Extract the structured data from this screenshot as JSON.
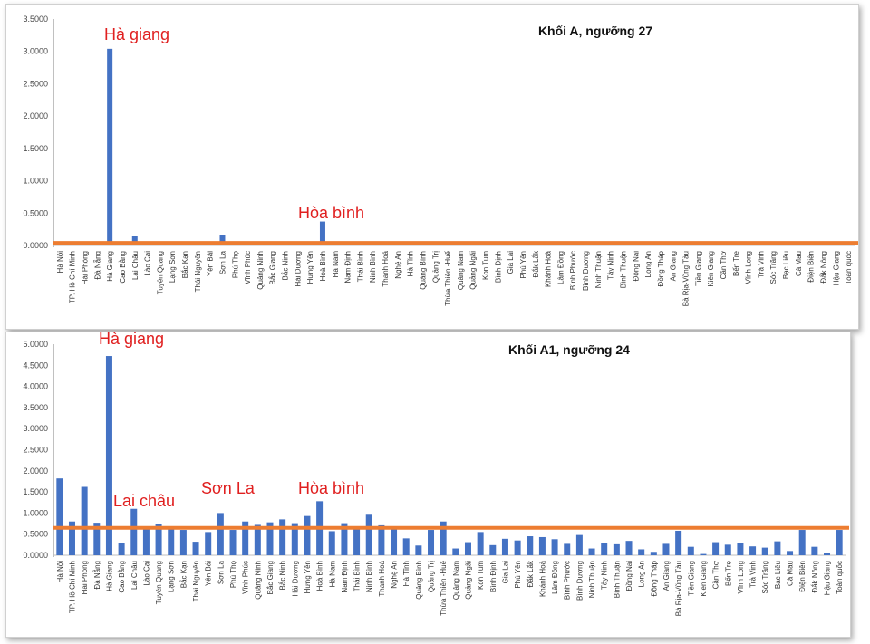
{
  "colors": {
    "bar": "#4472c4",
    "threshold": "#ed7d31",
    "annotation": "#e02020",
    "grid": "#d9d9d9"
  },
  "chart_data": [
    {
      "type": "bar",
      "title": "Khối A, ngưỡng 27",
      "ylim": [
        0,
        3.5
      ],
      "yticks": [
        "0.0000",
        "0.5000",
        "1.0000",
        "1.5000",
        "2.0000",
        "2.5000",
        "3.0000",
        "3.5000"
      ],
      "threshold": 0.04,
      "grid": false,
      "annotations": [
        {
          "text": "Hà giang",
          "category": "Hà Giang"
        },
        {
          "text": "Hòa bình",
          "category": "Hoà Bình"
        }
      ],
      "categories": [
        "Hà Nội",
        "TP. Hồ Chí Minh",
        "Hải Phòng",
        "Đà Nẵng",
        "Hà Giang",
        "Cao Bằng",
        "Lai Châu",
        "Lào Cai",
        "Tuyên Quang",
        "Lạng Sơn",
        "Bắc Kạn",
        "Thái Nguyên",
        "Yên Bái",
        "Sơn La",
        "Phú Thọ",
        "Vĩnh Phúc",
        "Quảng Ninh",
        "Bắc Giang",
        "Bắc Ninh",
        "Hải Dương",
        "Hưng Yên",
        "Hoà Bình",
        "Hà Nam",
        "Nam Định",
        "Thái Bình",
        "Ninh Bình",
        "Thanh Hoá",
        "Nghệ An",
        "Hà Tĩnh",
        "Quảng Bình",
        "Quảng Trị",
        "Thừa Thiên -Huế",
        "Quảng Nam",
        "Quảng Ngãi",
        "Kon Tum",
        "Bình Định",
        "Gia Lai",
        "Phú Yên",
        "Đắk Lắk",
        "Khánh Hoà",
        "Lâm Đồng",
        "Bình Phước",
        "Bình Dương",
        "Ninh Thuận",
        "Tây Ninh",
        "Bình Thuận",
        "Đồng Nai",
        "Long An",
        "Đồng Tháp",
        "An Giang",
        "Bà Rịa-Vũng Tàu",
        "Tiền Giang",
        "Kiên Giang",
        "Cần Thơ",
        "Bến Tre",
        "Vĩnh Long",
        "Trà Vinh",
        "Sóc Trăng",
        "Bạc Liêu",
        "Cà Mau",
        "Điện Biên",
        "Đắk Nông",
        "Hậu Giang",
        "Toàn quốc"
      ],
      "values": [
        0.04,
        0.03,
        0.05,
        0.02,
        3.04,
        0.0,
        0.14,
        0.03,
        0.04,
        0.0,
        0.0,
        0.02,
        0.0,
        0.16,
        0.05,
        0.05,
        0.02,
        0.04,
        0.05,
        0.04,
        0.03,
        0.37,
        0.0,
        0.05,
        0.04,
        0.04,
        0.05,
        0.04,
        0.0,
        0.03,
        0.05,
        0.04,
        0.0,
        0.0,
        0.0,
        0.0,
        0.0,
        0.0,
        0.0,
        0.0,
        0.0,
        0.0,
        0.0,
        0.0,
        0.0,
        0.0,
        0.0,
        0.0,
        0.0,
        0.0,
        0.0,
        0.0,
        0.0,
        0.0,
        0.02,
        0.0,
        0.0,
        0.0,
        0.04,
        0.0,
        0.0,
        0.0,
        0.0,
        0.04
      ]
    },
    {
      "type": "bar",
      "title": "Khối A1, ngưỡng 24",
      "ylim": [
        0,
        5.0
      ],
      "yticks": [
        "0.0000",
        "0.5000",
        "1.0000",
        "1.5000",
        "2.0000",
        "2.5000",
        "3.0000",
        "3.5000",
        "4.0000",
        "4.5000",
        "5.0000"
      ],
      "threshold": 0.65,
      "grid": false,
      "annotations": [
        {
          "text": "Hà giang",
          "category": "Hà Giang"
        },
        {
          "text": "Lai châu",
          "category": "Lai Châu"
        },
        {
          "text": "Sơn La",
          "category": "Sơn La"
        },
        {
          "text": "Hòa bình",
          "category": "Hoà Bình"
        }
      ],
      "categories": [
        "Hà Nội",
        "TP. Hồ Chí Minh",
        "Hải Phòng",
        "Đà Nẵng",
        "Hà Giang",
        "Cao Bằng",
        "Lai Châu",
        "Lào Cai",
        "Tuyên Quang",
        "Lạng Sơn",
        "Bắc Kạn",
        "Thái Nguyên",
        "Yên Bái",
        "Sơn La",
        "Phú Thọ",
        "Vĩnh Phúc",
        "Quảng Ninh",
        "Bắc Giang",
        "Bắc Ninh",
        "Hải Dương",
        "Hưng Yên",
        "Hoà Bình",
        "Hà Nam",
        "Nam Định",
        "Thái Bình",
        "Ninh Bình",
        "Thanh Hoá",
        "Nghệ An",
        "Hà Tĩnh",
        "Quảng Bình",
        "Quảng Trị",
        "Thừa Thiên -Huế",
        "Quảng Nam",
        "Quảng Ngãi",
        "Kon Tum",
        "Bình Định",
        "Gia Lai",
        "Phú Yên",
        "Đắk Lắk",
        "Khánh Hoà",
        "Lâm Đồng",
        "Bình Phước",
        "Bình Dương",
        "Ninh Thuận",
        "Tây Ninh",
        "Bình Thuận",
        "Đồng Nai",
        "Long An",
        "Đồng Tháp",
        "An Giang",
        "Bà Rịa-Vũng Tàu",
        "Tiền Giang",
        "Kiên Giang",
        "Cần Thơ",
        "Bến Tre",
        "Vĩnh Long",
        "Trà Vinh",
        "Sóc Trăng",
        "Bạc Liêu",
        "Cà Mau",
        "Điện Biên",
        "Đắk Nông",
        "Hậu Giang",
        "Toàn quốc"
      ],
      "values": [
        1.82,
        0.8,
        1.62,
        0.77,
        4.72,
        0.29,
        1.1,
        0.62,
        0.74,
        0.67,
        0.6,
        0.32,
        0.55,
        1.0,
        0.6,
        0.8,
        0.72,
        0.78,
        0.85,
        0.76,
        0.93,
        1.28,
        0.57,
        0.76,
        0.68,
        0.96,
        0.71,
        0.62,
        0.4,
        0.23,
        0.6,
        0.8,
        0.16,
        0.31,
        0.55,
        0.24,
        0.39,
        0.35,
        0.45,
        0.43,
        0.38,
        0.27,
        0.48,
        0.16,
        0.3,
        0.26,
        0.34,
        0.14,
        0.08,
        0.27,
        0.58,
        0.2,
        0.03,
        0.31,
        0.25,
        0.3,
        0.21,
        0.18,
        0.33,
        0.1,
        0.6,
        0.2,
        0.05,
        0.6
      ]
    }
  ]
}
